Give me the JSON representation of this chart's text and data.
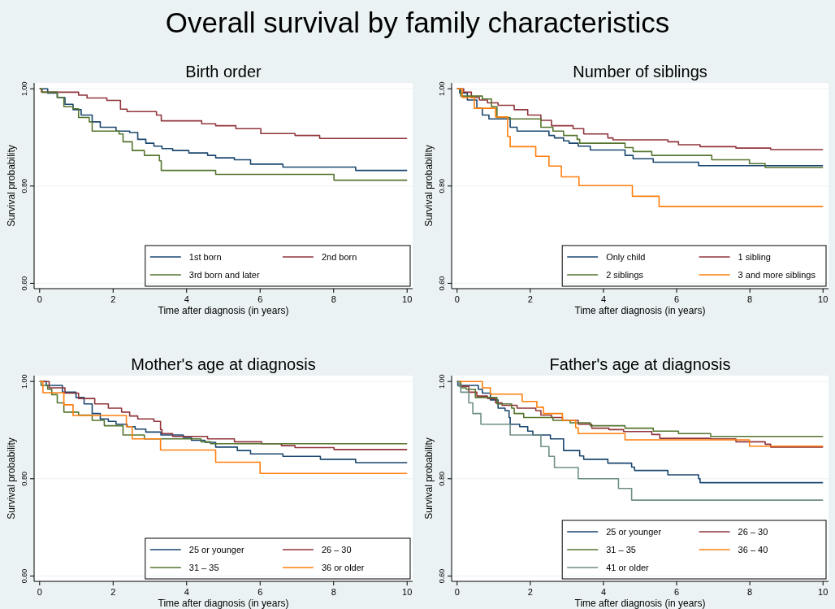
{
  "chart_data": [
    {
      "type": "other",
      "title": "Overall survival by family characteristics"
    },
    {
      "type": "step",
      "title": "Birth order",
      "xlabel": "Time after diagnosis (in years)",
      "ylabel": "Survival probability",
      "xlim": [
        -0.15,
        10.15
      ],
      "ylim": [
        0.589,
        1.012
      ],
      "xticks": [
        0,
        2,
        4,
        6,
        8,
        10
      ],
      "yticks": [
        {
          "value": 0.6,
          "label": "0.60"
        },
        {
          "value": 0.8,
          "label": "0.80"
        },
        {
          "value": 1.0,
          "label": "1.00"
        }
      ],
      "grid": "y",
      "legend": "bottom right",
      "series": [
        {
          "name": "1st born",
          "color": "#1a476f",
          "x": [
            0,
            0.22,
            0.48,
            0.69,
            0.91,
            1.13,
            1.43,
            1.65,
            2.08,
            2.45,
            2.67,
            2.89,
            3.11,
            3.33,
            3.62,
            4.06,
            4.57,
            4.79,
            5.3,
            5.74,
            6.62,
            8.6,
            10
          ],
          "values": [
            1.0,
            0.991,
            0.982,
            0.968,
            0.957,
            0.946,
            0.932,
            0.921,
            0.913,
            0.91,
            0.896,
            0.888,
            0.882,
            0.877,
            0.873,
            0.868,
            0.863,
            0.858,
            0.854,
            0.845,
            0.839,
            0.832,
            0.832
          ]
        },
        {
          "name": "2nd born",
          "color": "#90353b",
          "x": [
            0,
            0.05,
            1.06,
            1.29,
            1.83,
            2.2,
            2.38,
            3.18,
            3.31,
            4.41,
            4.79,
            5.34,
            6.02,
            6.95,
            7.62,
            10
          ],
          "values": [
            1.0,
            0.993,
            0.987,
            0.981,
            0.976,
            0.958,
            0.953,
            0.946,
            0.934,
            0.928,
            0.924,
            0.918,
            0.908,
            0.904,
            0.898,
            0.898
          ]
        },
        {
          "name": "3rd born and later",
          "color": "#55752f",
          "x": [
            0,
            0.07,
            0.48,
            0.66,
            0.91,
            1.06,
            1.35,
            1.43,
            2.16,
            2.27,
            2.52,
            2.85,
            3.26,
            3.31,
            4.79,
            8.01,
            10
          ],
          "values": [
            1.0,
            0.993,
            0.982,
            0.963,
            0.959,
            0.941,
            0.932,
            0.913,
            0.907,
            0.891,
            0.873,
            0.863,
            0.852,
            0.832,
            0.824,
            0.812,
            0.812
          ]
        }
      ]
    },
    {
      "type": "step",
      "title": "Number of siblings",
      "xlabel": "Time after diagnosis (in years)",
      "ylabel": "Survival probability",
      "xlim": [
        -0.15,
        10.15
      ],
      "ylim": [
        0.589,
        1.012
      ],
      "xticks": [
        0,
        2,
        4,
        6,
        8,
        10
      ],
      "yticks": [
        {
          "value": 0.6,
          "label": "0.60"
        },
        {
          "value": 0.8,
          "label": "0.80"
        },
        {
          "value": 1.0,
          "label": "1.00"
        }
      ],
      "grid": "y",
      "legend": "bottom right",
      "series": [
        {
          "name": "Only child",
          "color": "#1a476f",
          "x": [
            0,
            0.07,
            0.28,
            0.54,
            0.69,
            0.87,
            1.45,
            1.64,
            2.51,
            2.66,
            2.91,
            3.06,
            3.31,
            3.64,
            4.59,
            4.81,
            5.36,
            6.6,
            10
          ],
          "values": [
            1.0,
            0.991,
            0.977,
            0.96,
            0.946,
            0.938,
            0.921,
            0.913,
            0.904,
            0.899,
            0.893,
            0.888,
            0.882,
            0.874,
            0.863,
            0.856,
            0.849,
            0.842,
            0.842
          ]
        },
        {
          "name": "1 sibling",
          "color": "#90353b",
          "x": [
            0,
            0.18,
            0.39,
            0.61,
            0.83,
            1.12,
            1.56,
            1.93,
            2.29,
            2.58,
            3.17,
            3.46,
            4.12,
            4.26,
            5.76,
            6.05,
            6.64,
            7.62,
            8.57,
            10
          ],
          "values": [
            1.0,
            0.993,
            0.982,
            0.977,
            0.971,
            0.966,
            0.957,
            0.946,
            0.935,
            0.924,
            0.918,
            0.907,
            0.899,
            0.895,
            0.891,
            0.885,
            0.881,
            0.878,
            0.875,
            0.875
          ]
        },
        {
          "name": "2 siblings",
          "color": "#55752f",
          "x": [
            0,
            0.1,
            0.69,
            0.94,
            1.09,
            1.45,
            2.29,
            2.62,
            2.91,
            3.28,
            3.35,
            4.59,
            4.81,
            5.32,
            6.96,
            7.99,
            8.42,
            10
          ],
          "values": [
            1.0,
            0.985,
            0.979,
            0.963,
            0.941,
            0.938,
            0.921,
            0.913,
            0.904,
            0.896,
            0.888,
            0.879,
            0.871,
            0.863,
            0.854,
            0.846,
            0.838,
            0.838
          ]
        },
        {
          "name": "3 and more siblings",
          "color": "#ff7f0e",
          "x": [
            0,
            0.14,
            0.47,
            1.05,
            1.38,
            1.45,
            2.15,
            2.51,
            2.85,
            3.33,
            4.79,
            5.52,
            10
          ],
          "values": [
            1.0,
            0.982,
            0.96,
            0.942,
            0.902,
            0.881,
            0.861,
            0.841,
            0.819,
            0.801,
            0.779,
            0.758,
            0.758
          ]
        }
      ]
    },
    {
      "type": "step",
      "title": "Mother's age at diagnosis",
      "xlabel": "Time after diagnosis (in years)",
      "ylabel": "Survival probability",
      "xlim": [
        -0.15,
        10.15
      ],
      "ylim": [
        0.589,
        1.012
      ],
      "xticks": [
        0,
        2,
        4,
        6,
        8,
        10
      ],
      "yticks": [
        {
          "value": 0.6,
          "label": "0.60"
        },
        {
          "value": 0.8,
          "label": "0.80"
        },
        {
          "value": 1.0,
          "label": "1.00"
        }
      ],
      "grid": "y",
      "legend": "bottom right",
      "series": [
        {
          "name": "25 or younger",
          "color": "#1a476f",
          "x": [
            0,
            0.18,
            0.62,
            0.99,
            1.21,
            1.43,
            1.65,
            1.87,
            2.08,
            2.38,
            2.6,
            2.89,
            3.3,
            3.91,
            4.13,
            4.5,
            4.79,
            5.38,
            5.74,
            6.62,
            7.64,
            8.6,
            10
          ],
          "values": [
            1.0,
            0.992,
            0.978,
            0.967,
            0.954,
            0.934,
            0.923,
            0.918,
            0.912,
            0.907,
            0.902,
            0.896,
            0.89,
            0.885,
            0.879,
            0.875,
            0.865,
            0.858,
            0.851,
            0.846,
            0.84,
            0.833,
            0.833
          ]
        },
        {
          "name": "26 – 30",
          "color": "#90353b",
          "x": [
            0,
            0.26,
            0.69,
            1.06,
            1.5,
            1.87,
            2.23,
            2.45,
            2.67,
            3.11,
            3.29,
            3.33,
            3.62,
            4.57,
            5.3,
            6.04,
            6.58,
            6.95,
            8.01,
            10
          ],
          "values": [
            1.0,
            0.987,
            0.976,
            0.965,
            0.954,
            0.945,
            0.937,
            0.929,
            0.923,
            0.918,
            0.901,
            0.893,
            0.887,
            0.882,
            0.876,
            0.872,
            0.868,
            0.864,
            0.86,
            0.86
          ]
        },
        {
          "name": "31 – 35",
          "color": "#55752f",
          "x": [
            0,
            0.04,
            0.22,
            0.33,
            0.48,
            0.66,
            1.06,
            1.43,
            1.76,
            2.27,
            2.85,
            4.39,
            4.65,
            10
          ],
          "values": [
            1.0,
            0.992,
            0.984,
            0.973,
            0.956,
            0.937,
            0.931,
            0.92,
            0.909,
            0.89,
            0.882,
            0.876,
            0.872,
            0.872
          ]
        },
        {
          "name": "36 or older",
          "color": "#ff7f0e",
          "x": [
            0,
            0.09,
            0.66,
            0.91,
            2.36,
            2.52,
            3.29,
            4.79,
            6.0,
            10
          ],
          "values": [
            1.0,
            0.977,
            0.952,
            0.93,
            0.907,
            0.882,
            0.859,
            0.834,
            0.811,
            0.811
          ]
        }
      ]
    },
    {
      "type": "step",
      "title": "Father's age at diagnosis",
      "xlabel": "Time after diagnosis (in years)",
      "ylabel": "Survival probability",
      "xlim": [
        -0.15,
        10.15
      ],
      "ylim": [
        0.589,
        1.012
      ],
      "xticks": [
        0,
        2,
        4,
        6,
        8,
        10
      ],
      "yticks": [
        {
          "value": 0.6,
          "label": "0.60"
        },
        {
          "value": 0.8,
          "label": "0.80"
        },
        {
          "value": 1.0,
          "label": "1.00"
        }
      ],
      "grid": "y",
      "legend": "bottom right",
      "series": [
        {
          "name": "25 or younger",
          "color": "#1a476f",
          "x": [
            0,
            0.02,
            0.58,
            0.69,
            0.91,
            1.12,
            1.31,
            1.42,
            1.45,
            1.71,
            1.93,
            2.07,
            2.55,
            2.91,
            3.35,
            3.46,
            4.12,
            4.77,
            4.85,
            5.76,
            6.6,
            6.64,
            10
          ],
          "values": [
            1.0,
            0.992,
            0.984,
            0.976,
            0.962,
            0.945,
            0.94,
            0.926,
            0.912,
            0.907,
            0.898,
            0.89,
            0.882,
            0.858,
            0.847,
            0.84,
            0.832,
            0.824,
            0.817,
            0.808,
            0.8,
            0.792,
            0.792
          ]
        },
        {
          "name": "26 – 30",
          "color": "#90353b",
          "x": [
            0,
            0.1,
            0.32,
            0.54,
            0.83,
            1.05,
            1.23,
            1.64,
            2.15,
            2.29,
            2.58,
            2.88,
            3.31,
            3.68,
            4.15,
            4.55,
            5.32,
            5.54,
            6.93,
            7.62,
            8.42,
            8.57,
            10
          ],
          "values": [
            1.0,
            0.99,
            0.978,
            0.97,
            0.965,
            0.956,
            0.951,
            0.945,
            0.94,
            0.931,
            0.926,
            0.92,
            0.912,
            0.904,
            0.901,
            0.897,
            0.891,
            0.883,
            0.882,
            0.876,
            0.871,
            0.865,
            0.865
          ]
        },
        {
          "name": "31 – 35",
          "color": "#55752f",
          "x": [
            0,
            0.1,
            0.25,
            0.5,
            1.09,
            1.49,
            1.56,
            1.82,
            2.62,
            3.09,
            3.64,
            4.59,
            5.36,
            6.05,
            6.93,
            10
          ],
          "values": [
            1.0,
            0.987,
            0.984,
            0.967,
            0.954,
            0.945,
            0.934,
            0.926,
            0.92,
            0.915,
            0.909,
            0.904,
            0.898,
            0.893,
            0.887,
            0.887
          ]
        },
        {
          "name": "36 – 40",
          "color": "#ff7f0e",
          "x": [
            0,
            0.69,
            0.91,
            1.78,
            2.18,
            2.36,
            2.88,
            3.24,
            3.31,
            4.59,
            7.99,
            10
          ],
          "values": [
            1.0,
            0.987,
            0.974,
            0.959,
            0.947,
            0.934,
            0.92,
            0.905,
            0.893,
            0.88,
            0.867,
            0.867
          ]
        },
        {
          "name": "41 or older",
          "color": "#6e8e84",
          "x": [
            0,
            0.05,
            0.1,
            0.32,
            0.43,
            0.65,
            1.45,
            2.29,
            2.51,
            2.66,
            3.31,
            4.41,
            4.77,
            10
          ],
          "values": [
            1.0,
            0.99,
            0.978,
            0.956,
            0.934,
            0.912,
            0.89,
            0.866,
            0.846,
            0.823,
            0.8,
            0.78,
            0.756,
            0.756
          ]
        }
      ]
    }
  ]
}
